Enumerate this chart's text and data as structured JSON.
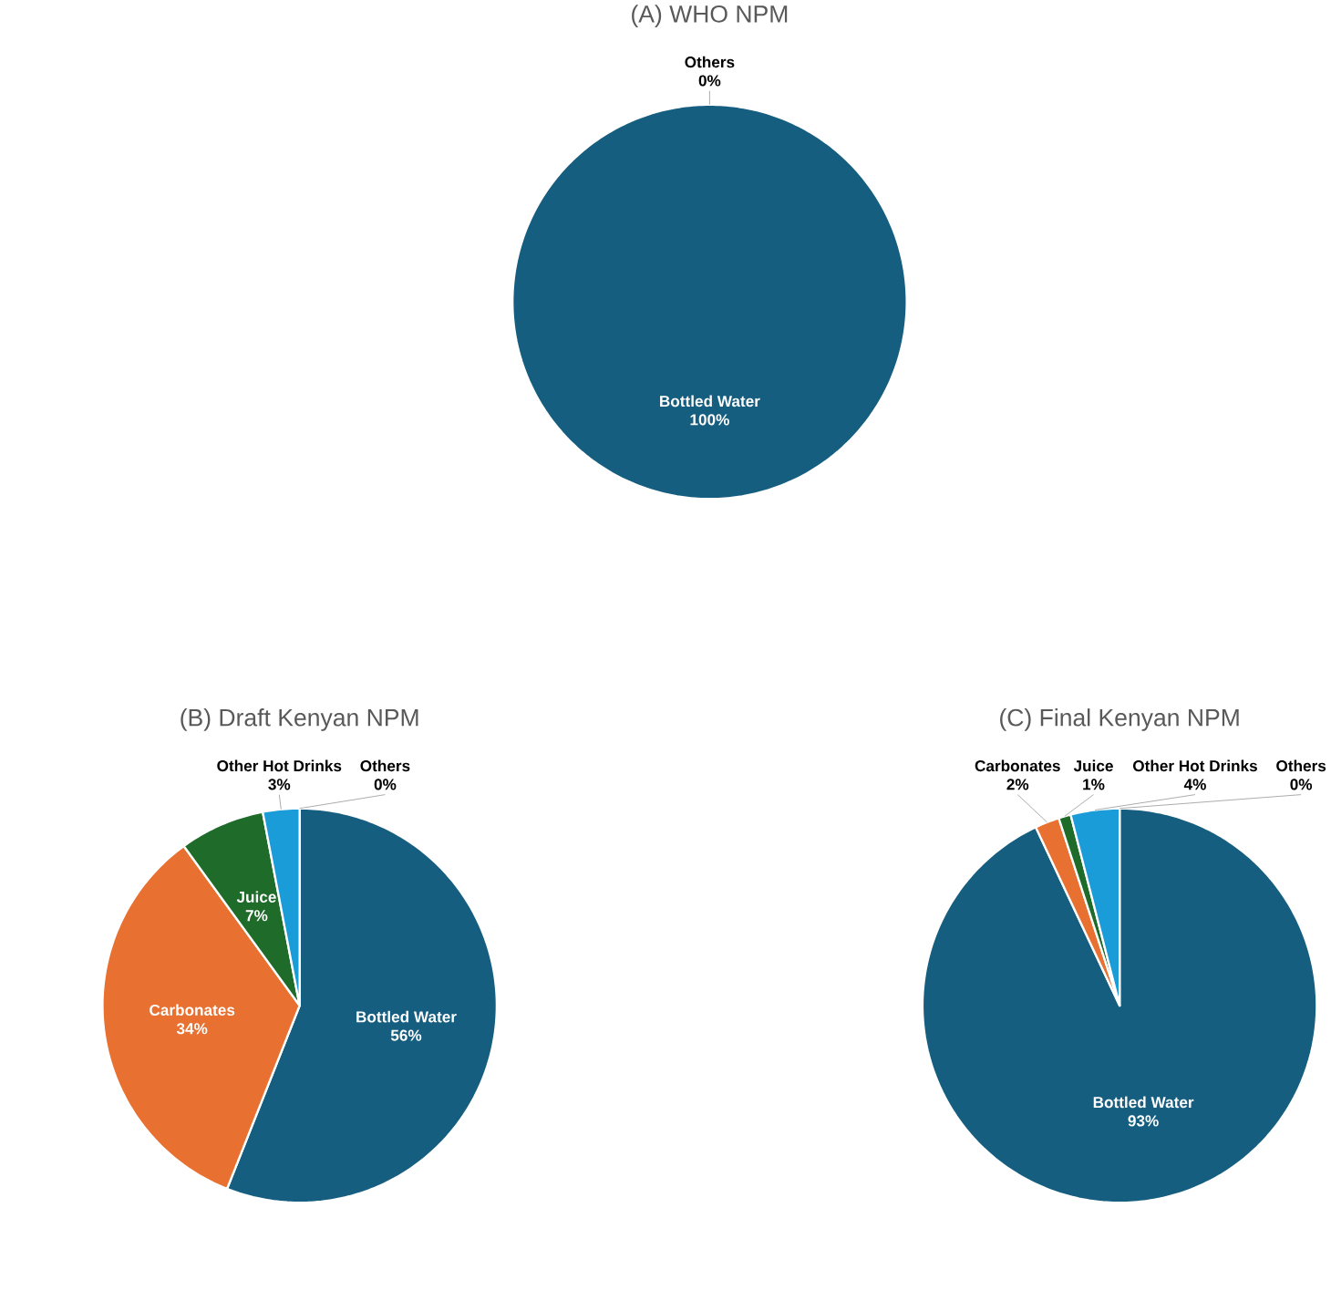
{
  "chart_data": [
    {
      "type": "pie",
      "title": "(A) WHO NPM",
      "categories": [
        "Bottled Water",
        "Others"
      ],
      "values": [
        100,
        0
      ],
      "colors": [
        "#165e80",
        "#8c8c8c"
      ],
      "value_labels": [
        "100%",
        "0%"
      ]
    },
    {
      "type": "pie",
      "title": "(B) Draft Kenyan NPM",
      "categories": [
        "Bottled Water",
        "Carbonates",
        "Juice",
        "Other Hot Drinks",
        "Others"
      ],
      "values": [
        56,
        34,
        7,
        3,
        0
      ],
      "colors": [
        "#165e80",
        "#e87030",
        "#1e6b2a",
        "#1a9cd8",
        "#8c8c8c"
      ],
      "value_labels": [
        "56%",
        "34%",
        "7%",
        "3%",
        "0%"
      ]
    },
    {
      "type": "pie",
      "title": "(C) Final Kenyan NPM",
      "categories": [
        "Bottled Water",
        "Carbonates",
        "Juice",
        "Other Hot Drinks",
        "Others"
      ],
      "values": [
        93,
        2,
        1,
        4,
        0
      ],
      "colors": [
        "#165e80",
        "#e87030",
        "#1e6b2a",
        "#1a9cd8",
        "#8c8c8c"
      ],
      "value_labels": [
        "93%",
        "2%",
        "1%",
        "4%",
        "0%"
      ]
    }
  ]
}
